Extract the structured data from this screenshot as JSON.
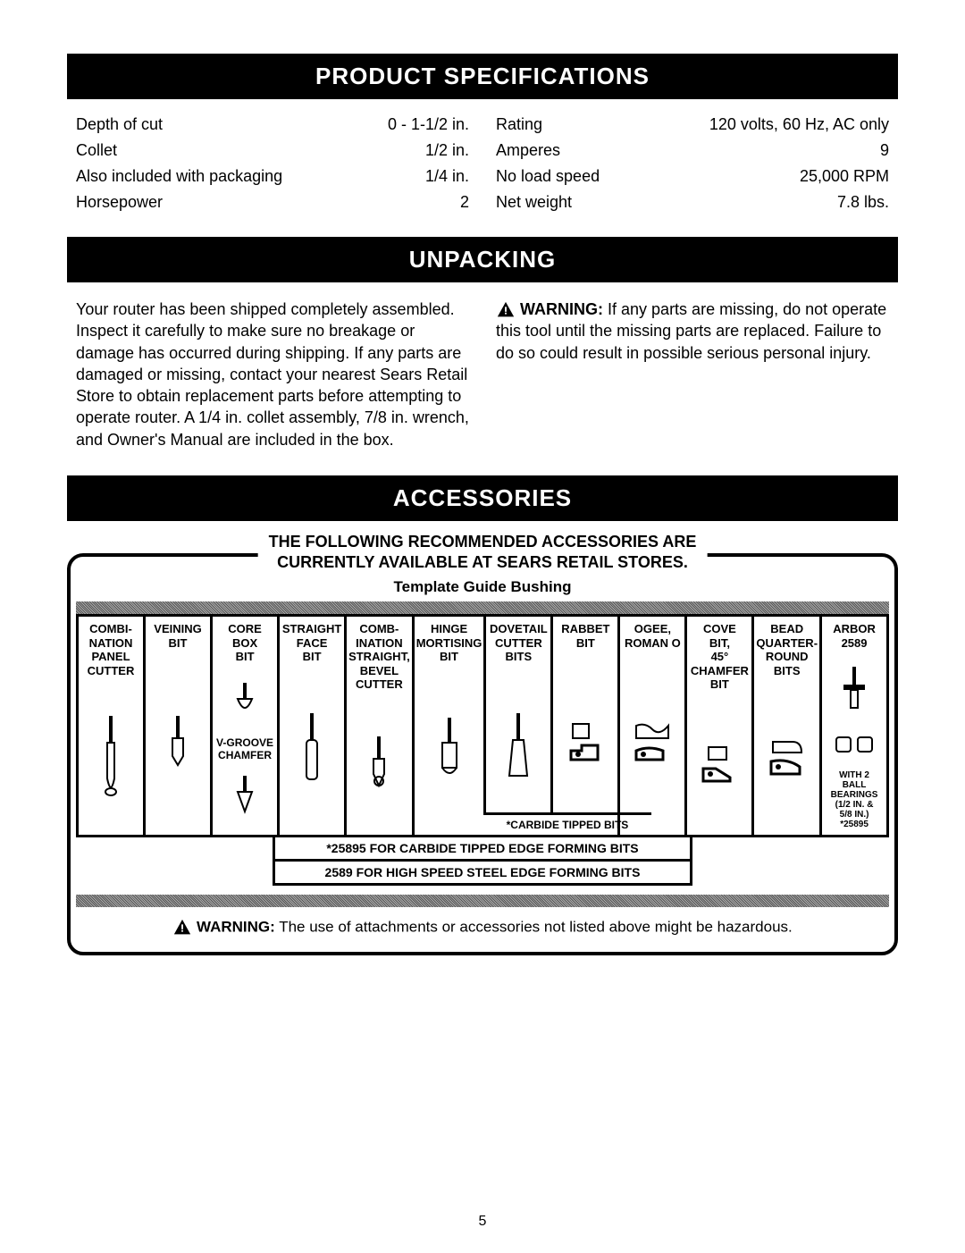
{
  "headers": {
    "specs": "PRODUCT SPECIFICATIONS",
    "unpacking": "UNPACKING",
    "accessories": "ACCESSORIES"
  },
  "specs": {
    "left": [
      {
        "label": "Depth of cut",
        "value": "0 - 1-1/2 in."
      },
      {
        "label": "Collet",
        "value": "1/2 in."
      },
      {
        "label": "Also included with packaging",
        "value": "1/4 in."
      },
      {
        "label": "Horsepower",
        "value": "2"
      }
    ],
    "right": [
      {
        "label": "Rating",
        "value": "120 volts, 60 Hz, AC only"
      },
      {
        "label": "Amperes",
        "value": "9"
      },
      {
        "label": "No load speed",
        "value": "25,000 RPM"
      },
      {
        "label": "Net weight",
        "value": "7.8 lbs."
      }
    ]
  },
  "unpacking": {
    "left": "Your router has been shipped completely assembled. Inspect it carefully to make sure no breakage or damage has occurred during shipping. If any parts are damaged or missing, contact your nearest Sears Retail Store to obtain replacement parts before attempting to operate router. A 1/4 in. collet assembly, 7/8 in. wrench, and Owner's Manual are included in the box.",
    "warning_label": "WARNING:",
    "warning_text": " If any parts are missing, do not operate this tool until the missing parts are replaced. Failure to do so could result in possible serious personal injury."
  },
  "accessories": {
    "title_line1": "THE FOLLOWING RECOMMENDED ACCESSORIES ARE",
    "title_line2": "CURRENTLY AVAILABLE AT SEARS RETAIL STORES.",
    "subtitle": "Template Guide Bushing",
    "bits": [
      {
        "label": "COMBI-\nNATION\nPANEL\nCUTTER"
      },
      {
        "label": "VEINING\nBIT"
      },
      {
        "label": "CORE BOX\nBIT",
        "sublabel": "V-GROOVE\nCHAMFER"
      },
      {
        "label": "STRAIGHT\nFACE\nBIT"
      },
      {
        "label": "COMB-\nINATION\nSTRAIGHT,\nBEVEL\nCUTTER"
      },
      {
        "label": "HINGE\nMORTISING\nBIT"
      },
      {
        "label": "DOVETAIL\nCUTTER\nBITS"
      },
      {
        "label": "RABBET\nBIT"
      },
      {
        "label": "OGEE,\nROMAN O"
      },
      {
        "label": "COVE\nBIT,\n45°\nCHAMFER\nBIT"
      },
      {
        "label": "BEAD\nQUARTER-\nROUND\nBITS"
      },
      {
        "label": "ARBOR\n2589",
        "note": "WITH 2\nBALL\nBEARINGS\n(1/2 IN. &\n5/8 IN.)\n*25895"
      }
    ],
    "carbide_strip": "*CARBIDE TIPPED BITS",
    "footer1": "*25895 FOR CARBIDE TIPPED EDGE FORMING BITS",
    "footer2": "2589 FOR HIGH SPEED STEEL EDGE FORMING BITS",
    "bottom_warning_label": "WARNING:",
    "bottom_warning_text": " The use of attachments or accessories not listed above might be hazardous."
  },
  "page_number": "5"
}
